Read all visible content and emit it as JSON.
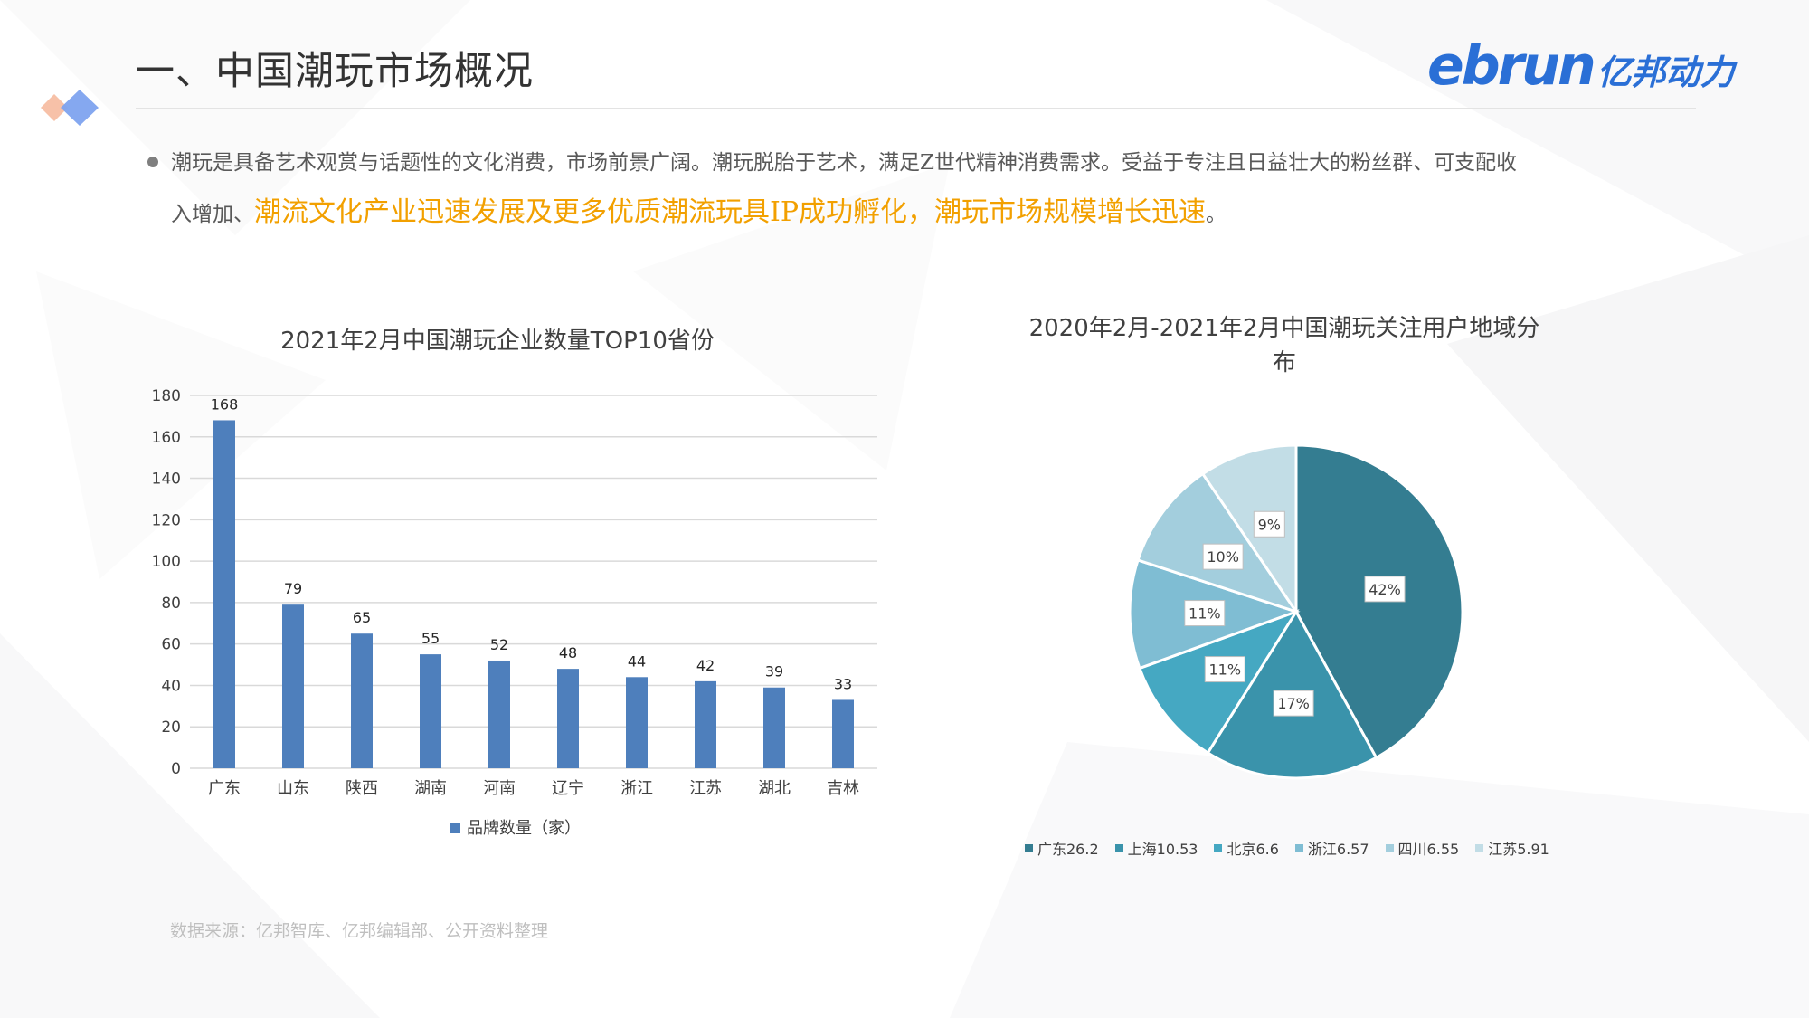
{
  "header": {
    "title": "一、中国潮玩市场概况",
    "logo_latin": "ebrun",
    "logo_cn": "亿邦动力"
  },
  "intro": {
    "line1": "潮玩是具备艺术观赏与话题性的文化消费，市场前景广阔。潮玩脱胎于艺术，满足Z世代精神消费需求。受益于专注且日益壮大的粉丝群、可支配收",
    "line2_prefix": "入增加、",
    "line2_highlight": "潮流文化产业迅速发展及更多优质潮流玩具IP成功孵化，潮玩市场规模增长迅速",
    "line2_suffix": "。"
  },
  "source_note": "数据来源：亿邦智库、亿邦编辑部、公开资料整理",
  "chart_data": [
    {
      "type": "bar",
      "title": "2021年2月中国潮玩企业数量TOP10省份",
      "categories": [
        "广东",
        "山东",
        "陕西",
        "湖南",
        "河南",
        "辽宁",
        "浙江",
        "江苏",
        "湖北",
        "吉林"
      ],
      "series": [
        {
          "name": "品牌数量（家）",
          "values": [
            168,
            79,
            65,
            55,
            52,
            48,
            44,
            42,
            39,
            33
          ]
        }
      ],
      "ylim": [
        0,
        180
      ],
      "yticks": [
        0,
        20,
        40,
        60,
        80,
        100,
        120,
        140,
        160,
        180
      ],
      "grid": true,
      "legend": "bottom",
      "color": "#4e7fbc"
    },
    {
      "type": "pie",
      "title_line1": "2020年2月-2021年2月中国潮玩关注用户地域分",
      "title_line2": "布",
      "labels": [
        "广东",
        "上海",
        "北京",
        "浙江",
        "四川",
        "江苏"
      ],
      "legend_labels": [
        "广东26.2",
        "上海10.53",
        "北京6.6",
        "浙江6.57",
        "四川6.55",
        "江苏5.91"
      ],
      "values": [
        26.2,
        10.53,
        6.6,
        6.57,
        6.55,
        5.91
      ],
      "percent_labels": [
        "42%",
        "17%",
        "11%",
        "11%",
        "10%",
        "9%"
      ],
      "colors": [
        "#347d91",
        "#3a93ab",
        "#45a8c2",
        "#7fbdd3",
        "#a3cedd",
        "#c2dde6"
      ],
      "legend": "bottom"
    }
  ]
}
